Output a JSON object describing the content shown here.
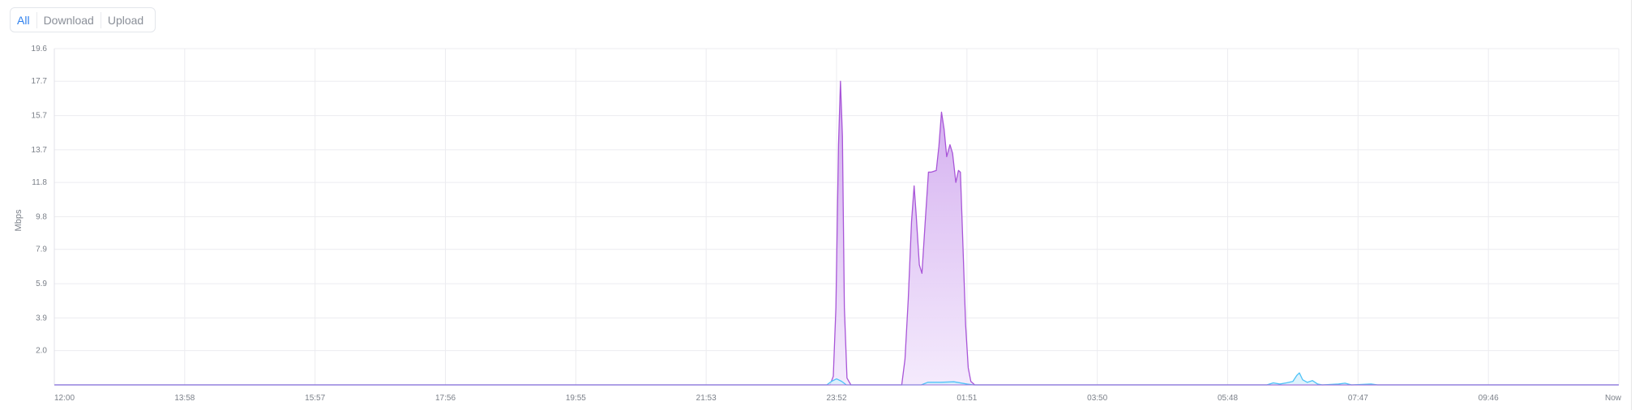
{
  "tabs": [
    {
      "label": "All",
      "active": true
    },
    {
      "label": "Download",
      "active": false
    },
    {
      "label": "Upload",
      "active": false
    }
  ],
  "chart_data": {
    "type": "area",
    "title": "",
    "xlabel": "",
    "ylabel": "Mbps",
    "ylim": [
      0,
      19.6
    ],
    "y_ticks": [
      "2.0",
      "3.9",
      "5.9",
      "7.9",
      "9.8",
      "11.8",
      "13.7",
      "15.7",
      "17.7",
      "19.6"
    ],
    "x_ticks": [
      "12:00",
      "13:58",
      "15:57",
      "17:56",
      "19:55",
      "21:53",
      "23:52",
      "01:51",
      "03:50",
      "05:48",
      "07:47",
      "09:46",
      "Now"
    ],
    "grid": true,
    "legend": "none",
    "x_unit": "hours since 12:00",
    "x_range": [
      0,
      24
    ],
    "series": [
      {
        "name": "Download",
        "color": "#a855d8",
        "fill": "#e6d3f7",
        "points": [
          [
            0,
            0
          ],
          [
            11.9,
            0
          ],
          [
            11.95,
            0.5
          ],
          [
            11.99,
            4.5
          ],
          [
            12.03,
            14.0
          ],
          [
            12.06,
            17.7
          ],
          [
            12.09,
            14.5
          ],
          [
            12.12,
            4.5
          ],
          [
            12.16,
            0.4
          ],
          [
            12.22,
            0
          ],
          [
            13.0,
            0
          ],
          [
            13.05,
            1.5
          ],
          [
            13.1,
            5.0
          ],
          [
            13.15,
            9.5
          ],
          [
            13.19,
            11.6
          ],
          [
            13.22,
            10.0
          ],
          [
            13.27,
            7.0
          ],
          [
            13.31,
            6.5
          ],
          [
            13.36,
            9.5
          ],
          [
            13.41,
            12.4
          ],
          [
            13.45,
            12.4
          ],
          [
            13.53,
            12.5
          ],
          [
            13.57,
            13.9
          ],
          [
            13.61,
            15.9
          ],
          [
            13.65,
            14.9
          ],
          [
            13.69,
            13.3
          ],
          [
            13.74,
            14.0
          ],
          [
            13.78,
            13.5
          ],
          [
            13.83,
            11.8
          ],
          [
            13.87,
            12.5
          ],
          [
            13.9,
            12.4
          ],
          [
            13.94,
            8.0
          ],
          [
            13.98,
            3.5
          ],
          [
            14.02,
            1.0
          ],
          [
            14.06,
            0.2
          ],
          [
            14.12,
            0
          ],
          [
            24,
            0
          ]
        ]
      },
      {
        "name": "Upload",
        "color": "#4fc3f7",
        "fill": "#d7f0fb",
        "points": [
          [
            0,
            0
          ],
          [
            11.85,
            0
          ],
          [
            11.92,
            0.2
          ],
          [
            12.0,
            0.35
          ],
          [
            12.08,
            0.2
          ],
          [
            12.15,
            0
          ],
          [
            13.3,
            0
          ],
          [
            13.4,
            0.15
          ],
          [
            13.6,
            0.15
          ],
          [
            13.8,
            0.18
          ],
          [
            14.0,
            0.05
          ],
          [
            14.1,
            0
          ],
          [
            18.6,
            0
          ],
          [
            18.7,
            0.12
          ],
          [
            18.8,
            0.05
          ],
          [
            18.9,
            0.12
          ],
          [
            19.0,
            0.2
          ],
          [
            19.06,
            0.55
          ],
          [
            19.1,
            0.7
          ],
          [
            19.15,
            0.3
          ],
          [
            19.22,
            0.15
          ],
          [
            19.3,
            0.25
          ],
          [
            19.38,
            0.05
          ],
          [
            19.45,
            0
          ],
          [
            19.7,
            0.05
          ],
          [
            19.8,
            0.1
          ],
          [
            19.9,
            0
          ],
          [
            20.2,
            0.05
          ],
          [
            20.3,
            0
          ],
          [
            24,
            0
          ]
        ]
      }
    ]
  }
}
